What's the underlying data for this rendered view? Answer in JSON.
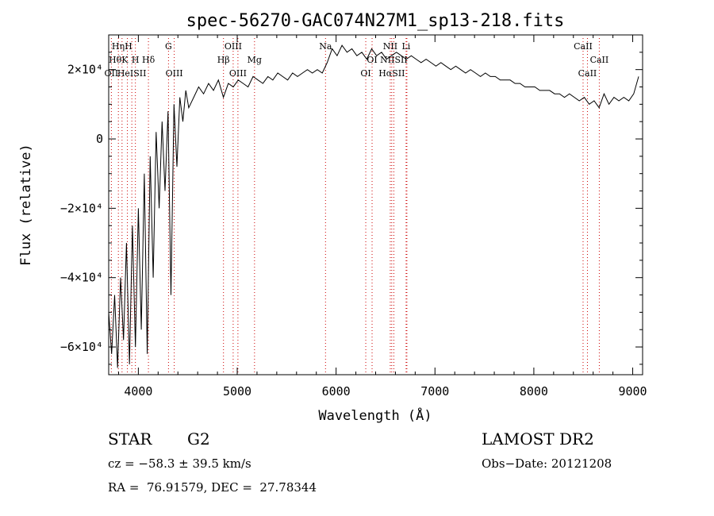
{
  "chart_data": {
    "type": "line",
    "title": "spec-56270-GAC074N27M1_sp13-218.fits",
    "xlabel": "Wavelength (Å)",
    "ylabel": "Flux (relative)",
    "xlim": [
      3700,
      9100
    ],
    "ylim": [
      -68000,
      30000
    ],
    "x_ticks": [
      4000,
      5000,
      6000,
      7000,
      8000,
      9000
    ],
    "x_tick_labels": [
      "4000",
      "5000",
      "6000",
      "7000",
      "8000",
      "9000"
    ],
    "y_ticks": [
      -60000,
      -40000,
      -20000,
      0,
      20000
    ],
    "y_tick_labels": [
      "−6×10⁴",
      "−4×10⁴",
      "−2×10⁴",
      "0",
      "2×10⁴"
    ],
    "grid": false,
    "line_color": "#000000",
    "marker_color": "#cc0000",
    "spectrum": {
      "x": [
        3700,
        3730,
        3760,
        3790,
        3820,
        3850,
        3880,
        3910,
        3940,
        3970,
        4000,
        4030,
        4060,
        4090,
        4120,
        4150,
        4180,
        4210,
        4240,
        4270,
        4300,
        4330,
        4360,
        4390,
        4420,
        4450,
        4480,
        4510,
        4560,
        4610,
        4660,
        4710,
        4760,
        4810,
        4860,
        4910,
        4960,
        5010,
        5060,
        5110,
        5160,
        5210,
        5260,
        5310,
        5360,
        5410,
        5460,
        5510,
        5560,
        5610,
        5660,
        5710,
        5760,
        5810,
        5860,
        5910,
        5960,
        6010,
        6060,
        6110,
        6160,
        6210,
        6260,
        6310,
        6360,
        6410,
        6460,
        6510,
        6560,
        6610,
        6660,
        6710,
        6760,
        6810,
        6860,
        6910,
        6960,
        7010,
        7060,
        7110,
        7160,
        7210,
        7260,
        7310,
        7360,
        7410,
        7460,
        7510,
        7560,
        7610,
        7660,
        7710,
        7760,
        7810,
        7860,
        7910,
        7960,
        8010,
        8060,
        8110,
        8160,
        8210,
        8260,
        8310,
        8360,
        8410,
        8460,
        8510,
        8560,
        8610,
        8660,
        8710,
        8760,
        8810,
        8860,
        8910,
        8960,
        9010,
        9060
      ],
      "y": [
        -50000,
        -62000,
        -45000,
        -66000,
        -40000,
        -58000,
        -30000,
        -65000,
        -25000,
        -60000,
        -20000,
        -55000,
        -10000,
        -62000,
        -5000,
        -40000,
        2000,
        -20000,
        5000,
        -15000,
        8000,
        -45000,
        10000,
        -8000,
        12000,
        5000,
        14000,
        9000,
        12000,
        15000,
        13000,
        16000,
        14000,
        17000,
        12000,
        16000,
        15000,
        17000,
        16000,
        15000,
        18000,
        17000,
        16000,
        18000,
        17000,
        19000,
        18000,
        17000,
        19000,
        18000,
        19000,
        20000,
        19000,
        20000,
        19000,
        22000,
        26000,
        24000,
        27000,
        25000,
        26000,
        24000,
        25000,
        23000,
        26000,
        24000,
        25000,
        23000,
        24000,
        25000,
        24000,
        23000,
        24000,
        23000,
        22000,
        23000,
        22000,
        21000,
        22000,
        21000,
        20000,
        21000,
        20000,
        19000,
        20000,
        19000,
        18000,
        19000,
        18000,
        18000,
        17000,
        17000,
        17000,
        16000,
        16000,
        15000,
        15000,
        15000,
        14000,
        14000,
        14000,
        13000,
        13000,
        12000,
        13000,
        12000,
        11000,
        12000,
        10000,
        11000,
        9000,
        13000,
        10000,
        12000,
        11000,
        12000,
        11000,
        13000,
        18000
      ]
    },
    "line_markers": [
      {
        "label": "HηH",
        "x": 3835,
        "row": 0
      },
      {
        "label": "HθK",
        "x": 3798,
        "row": 1
      },
      {
        "label": "H",
        "x": 3970,
        "row": 1
      },
      {
        "label": "Hδ",
        "x": 4102,
        "row": 1
      },
      {
        "label": "OII",
        "x": 3727,
        "row": 2
      },
      {
        "label": "HeISII",
        "x": 3934,
        "row": 2
      },
      {
        "label": "G",
        "x": 4305,
        "row": 0
      },
      {
        "label": "OIII",
        "x": 4363,
        "row": 2
      },
      {
        "label": "OIII",
        "x": 4959,
        "row": 0
      },
      {
        "label": "Hβ",
        "x": 4861,
        "row": 1
      },
      {
        "label": "Mg",
        "x": 5175,
        "row": 1
      },
      {
        "label": "OIII",
        "x": 5007,
        "row": 2
      },
      {
        "label": "Na",
        "x": 5893,
        "row": 0
      },
      {
        "label": "NII",
        "x": 6548,
        "row": 0
      },
      {
        "label": "Li",
        "x": 6708,
        "row": 0
      },
      {
        "label": "OI",
        "x": 6364,
        "row": 1
      },
      {
        "label": "NIISII",
        "x": 6584,
        "row": 1
      },
      {
        "label": "OI",
        "x": 6300,
        "row": 2
      },
      {
        "label": "HαSII",
        "x": 6563,
        "row": 2
      },
      {
        "label": "CaII",
        "x": 8498,
        "row": 0
      },
      {
        "label": "CaII",
        "x": 8662,
        "row": 1
      },
      {
        "label": "CaII",
        "x": 8542,
        "row": 2
      }
    ],
    "marker_lines_x": [
      3727,
      3798,
      3835,
      3889,
      3934,
      3970,
      4102,
      4305,
      4363,
      4861,
      4959,
      5007,
      5175,
      5893,
      6300,
      6364,
      6548,
      6563,
      6584,
      6708,
      6716,
      8498,
      8542,
      8662
    ]
  },
  "info": {
    "object_class": "STAR",
    "subclass": "G2",
    "survey": "LAMOST DR2",
    "cz": "cz = −58.3 ± 39.5 km/s",
    "obs_date": "Obs−Date: 20121208",
    "coords": "RA =  76.91579, DEC =  27.78344"
  }
}
